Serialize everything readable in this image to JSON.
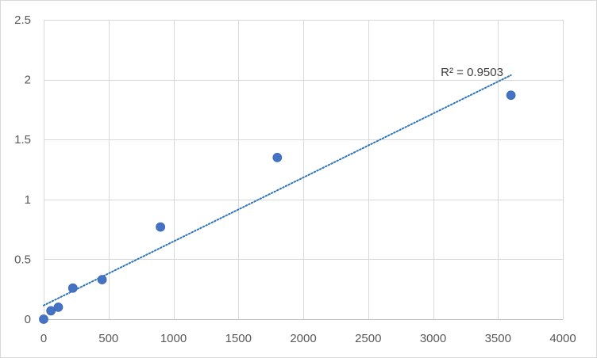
{
  "chart_data": {
    "type": "scatter",
    "title": "",
    "xlabel": "",
    "ylabel": "",
    "xlim": [
      0,
      4000
    ],
    "ylim": [
      0,
      2.5
    ],
    "x_ticks": [
      0,
      500,
      1000,
      1500,
      2000,
      2500,
      3000,
      3500,
      4000
    ],
    "y_ticks": [
      0,
      0.5,
      1,
      1.5,
      2,
      2.5
    ],
    "x_tick_labels": [
      "0",
      "500",
      "1000",
      "1500",
      "2000",
      "2500",
      "3000",
      "3500",
      "4000"
    ],
    "y_tick_labels": [
      "0",
      "0.5",
      "1",
      "1.5",
      "2",
      "2.5"
    ],
    "grid": true,
    "legend": "none",
    "series": [
      {
        "color": "#4472c4",
        "points": [
          {
            "x": 0,
            "y": 0.0
          },
          {
            "x": 56,
            "y": 0.07
          },
          {
            "x": 113,
            "y": 0.1
          },
          {
            "x": 225,
            "y": 0.26
          },
          {
            "x": 450,
            "y": 0.33
          },
          {
            "x": 900,
            "y": 0.77
          },
          {
            "x": 1800,
            "y": 1.35
          },
          {
            "x": 3600,
            "y": 1.87
          }
        ],
        "trendline": {
          "type": "linear",
          "style": "dotted",
          "color": "#2e75b6",
          "x_range": [
            0,
            3600
          ],
          "slope": 0.000534,
          "intercept": 0.115
        }
      }
    ],
    "annotations": [
      {
        "text": "R² = 0.9503",
        "x": 3300,
        "y": 2.03
      }
    ]
  }
}
